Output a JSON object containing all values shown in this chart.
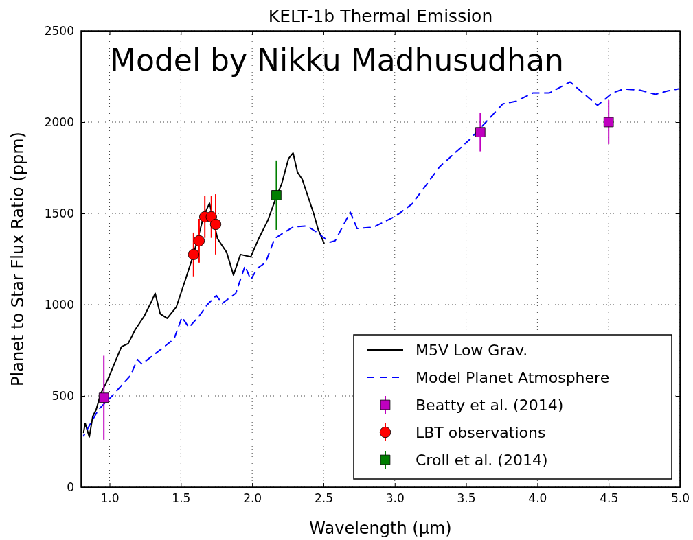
{
  "chart_data": {
    "type": "line",
    "title": "KELT-1b Thermal Emission",
    "xlabel": "Wavelength (μm)",
    "ylabel": "Planet to Star Flux Ratio (ppm)",
    "annotations": [
      "Model by Nikku Madhusudhan"
    ],
    "xlim": [
      0.8,
      5.0
    ],
    "xticks": [
      {
        "value": 1,
        "label": "1.0"
      },
      {
        "value": 1.5,
        "label": "1.5"
      },
      {
        "value": 2,
        "label": "2.0"
      },
      {
        "value": 2.5,
        "label": "2.5"
      },
      {
        "value": 3,
        "label": "3.0"
      },
      {
        "value": 3.5,
        "label": "3.5"
      },
      {
        "value": 4,
        "label": "4.0"
      },
      {
        "value": 4.5,
        "label": "4.5"
      },
      {
        "value": 5,
        "label": "5.0"
      }
    ],
    "ylim": [
      0,
      2500
    ],
    "yticks": [
      0,
      500,
      1000,
      1500,
      2000,
      2500
    ],
    "grid": true,
    "legend": "bottom right",
    "series": [
      {
        "name": "M5V Low Grav.",
        "color": "#000000",
        "line_style": "solid",
        "marker": "none",
        "x": [
          0.818,
          0.829,
          0.858,
          0.882,
          0.906,
          0.938,
          0.986,
          1.083,
          1.131,
          1.179,
          1.243,
          1.291,
          1.32,
          1.355,
          1.404,
          1.468,
          1.532,
          1.589,
          1.661,
          1.701,
          1.757,
          1.821,
          1.869,
          1.918,
          1.99,
          2.046,
          2.11,
          2.174,
          2.207,
          2.255,
          2.287,
          2.318,
          2.351,
          2.399,
          2.431,
          2.463,
          2.504
        ],
        "values": [
          300,
          350,
          275,
          387,
          425,
          512,
          587,
          769,
          787,
          862,
          937,
          1012,
          1062,
          950,
          925,
          987,
          1137,
          1275,
          1487,
          1556,
          1362,
          1287,
          1162,
          1275,
          1262,
          1362,
          1462,
          1600,
          1662,
          1800,
          1831,
          1725,
          1687,
          1575,
          1500,
          1412,
          1337
        ]
      },
      {
        "name": "Model Planet Atmosphere",
        "color": "#0000ff",
        "line_style": "dashed",
        "marker": "none",
        "x": [
          0.818,
          0.922,
          1.018,
          1.147,
          1.195,
          1.227,
          1.371,
          1.452,
          1.508,
          1.556,
          1.628,
          1.685,
          1.749,
          1.789,
          1.885,
          1.95,
          1.99,
          2.038,
          2.094,
          2.158,
          2.207,
          2.287,
          2.383,
          2.447,
          2.511,
          2.544,
          2.582,
          2.688,
          2.736,
          2.852,
          3.006,
          3.122,
          3.314,
          3.526,
          3.758,
          3.854,
          3.97,
          4.085,
          4.23,
          4.422,
          4.528,
          4.605,
          4.721,
          4.827,
          4.914,
          4.99
        ],
        "values": [
          281,
          425,
          500,
          612,
          700,
          675,
          762,
          812,
          931,
          875,
          937,
          1000,
          1050,
          1006,
          1062,
          1212,
          1137,
          1200,
          1231,
          1362,
          1387,
          1425,
          1431,
          1400,
          1362,
          1342,
          1350,
          1507,
          1417,
          1425,
          1485,
          1552,
          1755,
          1905,
          2100,
          2115,
          2160,
          2160,
          2220,
          2092,
          2160,
          2182,
          2175,
          2152,
          2171,
          2182
        ]
      },
      {
        "name": "Beatty et al. (2014)",
        "type": "scatter",
        "color": "#bf00bf",
        "marker": "square",
        "x": [
          0.96,
          3.6,
          4.5
        ],
        "values": [
          490,
          1945,
          2000
        ],
        "errors": [
          230,
          105,
          120
        ]
      },
      {
        "name": "LBT observations",
        "type": "scatter",
        "color": "#ff0000",
        "marker": "circle",
        "x": [
          1.589,
          1.628,
          1.668,
          1.714,
          1.744
        ],
        "values": [
          1275,
          1350,
          1481,
          1481,
          1440
        ],
        "errors": [
          120,
          120,
          115,
          115,
          165
        ]
      },
      {
        "name": "Croll et al. (2014)",
        "type": "scatter",
        "color": "#007f00",
        "marker": "square",
        "x": [
          2.17
        ],
        "values": [
          1600
        ],
        "errors": [
          190
        ]
      }
    ]
  }
}
